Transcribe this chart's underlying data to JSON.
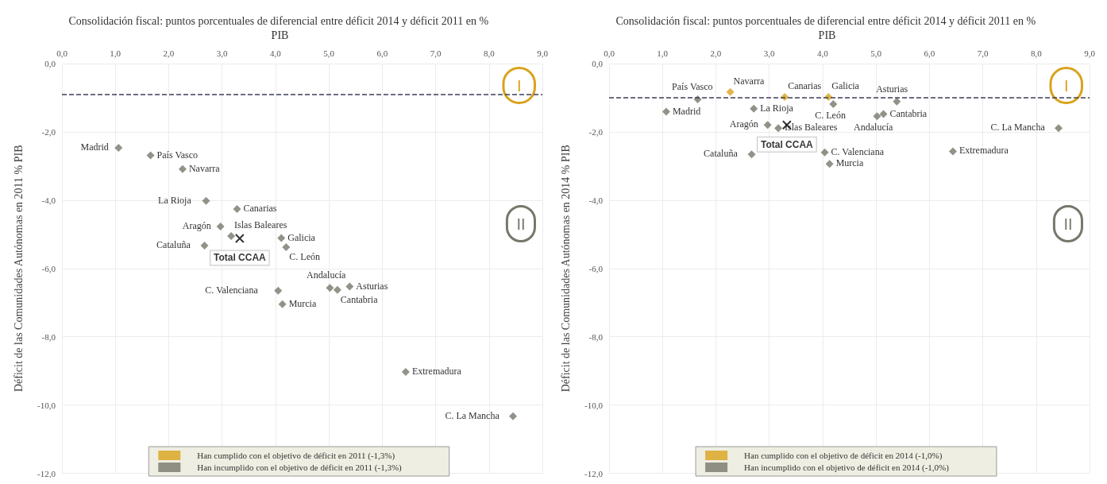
{
  "chart_data": [
    {
      "type": "scatter",
      "title": "Consolidación fiscal: puntos porcentuales de diferencial entre déficit 2014 y déficit 2011 en % PIB",
      "ylabel": "Déficit de las Comunidades Autónomas en 2011 % PIB",
      "xlim": [
        0,
        9
      ],
      "xticks": [
        {
          "value": 0,
          "label": "0,0"
        },
        {
          "value": 1,
          "label": "1,0"
        },
        {
          "value": 2,
          "label": "2,0"
        },
        {
          "value": 3,
          "label": "3,0"
        },
        {
          "value": 4,
          "label": "4,0"
        },
        {
          "value": 5,
          "label": "5,0"
        },
        {
          "value": 6,
          "label": "6,0"
        },
        {
          "value": 7,
          "label": "7,0"
        },
        {
          "value": 8,
          "label": "8,0"
        },
        {
          "value": 9,
          "label": "9,0"
        }
      ],
      "ylim": [
        -12,
        0
      ],
      "yticks": [
        {
          "value": -12,
          "label": "-12,0"
        },
        {
          "value": -10,
          "label": "-10,0"
        },
        {
          "value": -8,
          "label": "-8,0"
        },
        {
          "value": -6,
          "label": "-6,0"
        },
        {
          "value": -4,
          "label": "-4,0"
        },
        {
          "value": -2,
          "label": "-2,0"
        },
        {
          "value": 0,
          "label": "0,0"
        }
      ],
      "grid": true,
      "legend": "bottom",
      "marker": "diamond",
      "series": [
        {
          "name": "Han cumplido con el objetivo de déficit en 2011 (-1,3%)",
          "color": "#d9a21b"
        },
        {
          "name": "Han incumplido con el objetivo de déficit en 2011 (-1,3%)",
          "color": "#77776b",
          "x": [
            1.06,
            1.66,
            2.26,
            2.7,
            3.28,
            2.97,
            3.17,
            4.11,
            4.2,
            2.67,
            4.05,
            4.13,
            5.02,
            5.16,
            5.39,
            6.44,
            8.45
          ],
          "values": [
            -2.47,
            -2.69,
            -3.09,
            -4.02,
            -4.26,
            -4.77,
            -5.05,
            -5.11,
            -5.38,
            -5.33,
            -6.65,
            -7.05,
            -6.57,
            -6.63,
            -6.53,
            -9.03,
            -10.33
          ]
        },
        {
          "name": "Total CCAA",
          "color": "#000000",
          "marker": "cross",
          "x": [
            3.33
          ],
          "values": [
            -5.12
          ]
        }
      ],
      "ref_lines": [
        {
          "axis": "y",
          "value": -0.9,
          "line_style": "dashed",
          "color": "#3b3f5a"
        }
      ],
      "annotations": [
        "I",
        "II",
        {
          "text": "Madrid",
          "x": 1.06,
          "y": -2.47
        },
        {
          "text": "País Vasco",
          "x": 1.66,
          "y": -2.69
        },
        {
          "text": "Navarra",
          "x": 2.26,
          "y": -3.09
        },
        {
          "text": "La Rioja",
          "x": 2.7,
          "y": -4.02
        },
        {
          "text": "Canarias",
          "x": 3.28,
          "y": -4.26
        },
        {
          "text": "Aragón",
          "x": 2.97,
          "y": -4.77
        },
        {
          "text": "Islas Baleares",
          "x": 3.17,
          "y": -5.05
        },
        {
          "text": "Galicia",
          "x": 4.11,
          "y": -5.11
        },
        {
          "text": "C. León",
          "x": 4.2,
          "y": -5.38
        },
        {
          "text": "Cataluña",
          "x": 2.67,
          "y": -5.33
        },
        {
          "text": "C. Valenciana",
          "x": 4.05,
          "y": -6.65
        },
        {
          "text": "Murcia",
          "x": 4.13,
          "y": -7.05
        },
        {
          "text": "Andalucía",
          "x": 5.02,
          "y": -6.57
        },
        {
          "text": "Cantabria",
          "x": 5.16,
          "y": -6.63
        },
        {
          "text": "Asturias",
          "x": 5.39,
          "y": -6.53
        },
        {
          "text": "Extremadura",
          "x": 6.44,
          "y": -9.03
        },
        {
          "text": "C. La Mancha",
          "x": 8.45,
          "y": -10.33
        }
      ]
    },
    {
      "type": "scatter",
      "title": "Consolidación fiscal: puntos porcentuales de diferencial entre déficit 2014 y déficit 2011 en % PIB",
      "ylabel": "Déficit de las Comunidades Autónomas en 2014 % PIB",
      "xlim": [
        0,
        9
      ],
      "xticks": [
        {
          "value": 0,
          "label": "0,0"
        },
        {
          "value": 1,
          "label": "1,0"
        },
        {
          "value": 2,
          "label": "2,0"
        },
        {
          "value": 3,
          "label": "3,0"
        },
        {
          "value": 4,
          "label": "4,0"
        },
        {
          "value": 5,
          "label": "5,0"
        },
        {
          "value": 6,
          "label": "6,0"
        },
        {
          "value": 7,
          "label": "7,0"
        },
        {
          "value": 8,
          "label": "8,0"
        },
        {
          "value": 9,
          "label": "9,0"
        }
      ],
      "ylim": [
        -12,
        0
      ],
      "yticks": [
        {
          "value": -12,
          "label": "-12,0"
        },
        {
          "value": -10,
          "label": "-10,0"
        },
        {
          "value": -8,
          "label": "-8,0"
        },
        {
          "value": -6,
          "label": "-6,0"
        },
        {
          "value": -4,
          "label": "-4,0"
        },
        {
          "value": -2,
          "label": "-2,0"
        },
        {
          "value": 0,
          "label": "0,0"
        }
      ],
      "grid": true,
      "legend": "bottom",
      "marker": "diamond",
      "series": [
        {
          "name": "Han cumplido con el objetivo de déficit en 2014 (-1,0%)",
          "color": "#d9a21b",
          "x": [
            2.27,
            3.29,
            4.11
          ],
          "values": [
            -0.83,
            -0.98,
            -0.98
          ]
        },
        {
          "name": "Han incumplido con el objetivo de déficit en 2014 (-1,0%)",
          "color": "#77776b",
          "x": [
            1.07,
            1.66,
            2.71,
            4.2,
            5.39,
            5.02,
            5.14,
            2.97,
            3.17,
            2.67,
            4.04,
            4.13,
            6.44,
            8.42
          ],
          "values": [
            -1.41,
            -1.05,
            -1.32,
            -1.19,
            -1.11,
            -1.54,
            -1.48,
            -1.8,
            -1.89,
            -2.66,
            -2.6,
            -2.94,
            -2.57,
            -1.89
          ]
        },
        {
          "name": "Total CCAA",
          "color": "#000000",
          "marker": "cross",
          "x": [
            3.33
          ],
          "values": [
            -1.8
          ]
        }
      ],
      "ref_lines": [
        {
          "axis": "y",
          "value": -1.0,
          "line_style": "dashed",
          "color": "#3b3f5a"
        }
      ],
      "annotations": [
        "I",
        "II",
        {
          "text": "Madrid",
          "x": 1.07,
          "y": -1.41
        },
        {
          "text": "País Vasco",
          "x": 1.66,
          "y": -1.05
        },
        {
          "text": "Navarra",
          "x": 2.27,
          "y": -0.83
        },
        {
          "text": "La Rioja",
          "x": 2.71,
          "y": -1.32
        },
        {
          "text": "Canarias",
          "x": 3.29,
          "y": -0.98
        },
        {
          "text": "Galicia",
          "x": 4.11,
          "y": -0.98
        },
        {
          "text": "C. León",
          "x": 4.2,
          "y": -1.19
        },
        {
          "text": "Asturias",
          "x": 5.39,
          "y": -1.11
        },
        {
          "text": "Andalucía",
          "x": 5.02,
          "y": -1.54
        },
        {
          "text": "Cantabria",
          "x": 5.14,
          "y": -1.48
        },
        {
          "text": "Aragón",
          "x": 2.97,
          "y": -1.8
        },
        {
          "text": "Islas Baleares",
          "x": 3.17,
          "y": -1.89
        },
        {
          "text": "Cataluña",
          "x": 2.67,
          "y": -2.66
        },
        {
          "text": "C. Valenciana",
          "x": 4.04,
          "y": -2.6
        },
        {
          "text": "Murcia",
          "x": 4.13,
          "y": -2.94
        },
        {
          "text": "Extremadura",
          "x": 6.44,
          "y": -2.57
        },
        {
          "text": "C. La Mancha",
          "x": 8.42,
          "y": -1.89
        }
      ]
    }
  ]
}
